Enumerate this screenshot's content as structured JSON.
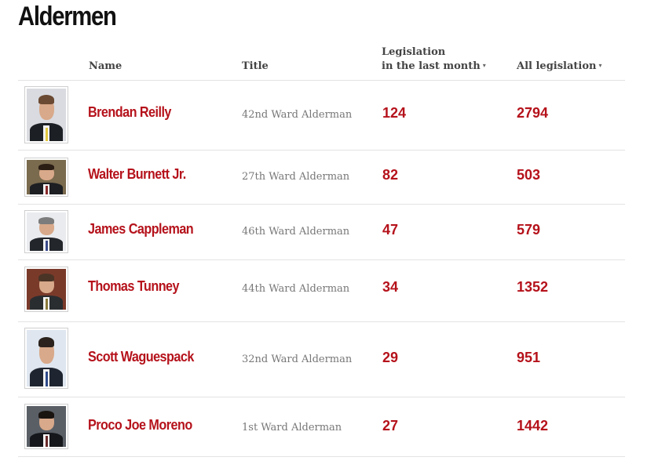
{
  "page": {
    "title": "Aldermen"
  },
  "table": {
    "headers": {
      "name": "Name",
      "title": "Title",
      "recent_line1": "Legislation",
      "recent_line2": "in the last month",
      "all": "All legislation",
      "sort_caret": "▾"
    },
    "rows": [
      {
        "name": "Brendan Reilly",
        "title": "42nd Ward Alderman",
        "recent": "124",
        "all": "2794",
        "photo": {
          "bg": "#d9dbe0",
          "hair": "#6b4a33",
          "suit": "#1c1f24",
          "tie": "#e2c840"
        }
      },
      {
        "name": "Walter Burnett Jr.",
        "title": "27th Ward Alderman",
        "recent": "82",
        "all": "503",
        "photo": {
          "bg": "#7a6a4e",
          "hair": "#2a1d14",
          "suit": "#1d1f22",
          "tie": "#8a2a2a"
        }
      },
      {
        "name": "James Cappleman",
        "title": "46th Ward Alderman",
        "recent": "47",
        "all": "579",
        "photo": {
          "bg": "#e9ebee",
          "hair": "#7c7c7c",
          "suit": "#23262b",
          "tie": "#3a4a8a"
        }
      },
      {
        "name": "Thomas Tunney",
        "title": "44th Ward Alderman",
        "recent": "34",
        "all": "1352",
        "photo": {
          "bg": "#7a3a2a",
          "hair": "#4a3426",
          "suit": "#2a2d30",
          "tie": "#8a7a3a"
        }
      },
      {
        "name": "Scott Waguespack",
        "title": "32nd Ward Alderman",
        "recent": "29",
        "all": "951",
        "photo": {
          "bg": "#dfe6ef",
          "hair": "#2b221d",
          "suit": "#1f2530",
          "tie": "#2e4a8a"
        }
      },
      {
        "name": "Proco Joe Moreno",
        "title": "1st Ward Alderman",
        "recent": "27",
        "all": "1442",
        "photo": {
          "bg": "#5a5f66",
          "hair": "#1a1411",
          "suit": "#15171a",
          "tie": "#6a2a2a"
        }
      }
    ]
  }
}
